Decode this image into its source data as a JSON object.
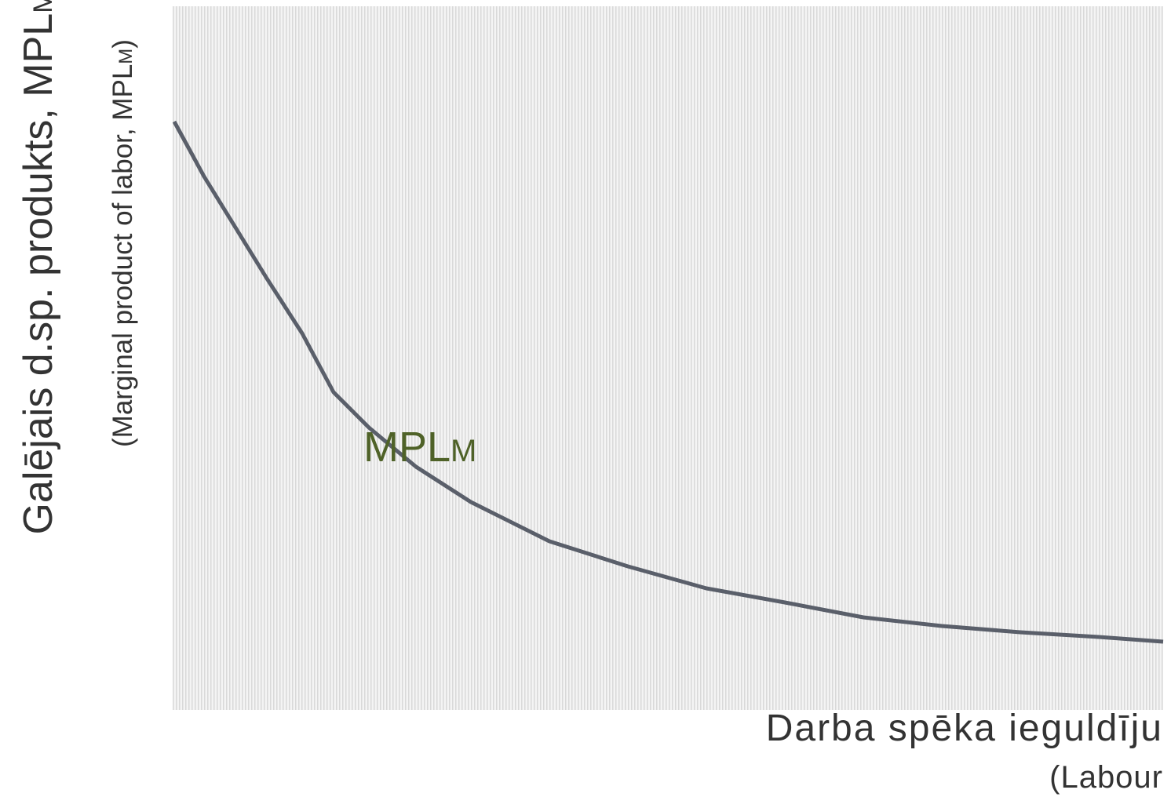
{
  "y_axis": {
    "title": "Galējais d.sp. produkts, MPL",
    "title_subscript": "M",
    "subtitle": "(Marginal product of labor, MPL",
    "subtitle_subscript": "M",
    "subtitle_end": ")"
  },
  "x_axis": {
    "title": "Darba spēka ieguldīju",
    "subtitle": "(Labour"
  },
  "curve": {
    "label": "MPL",
    "label_subscript": "M"
  }
}
